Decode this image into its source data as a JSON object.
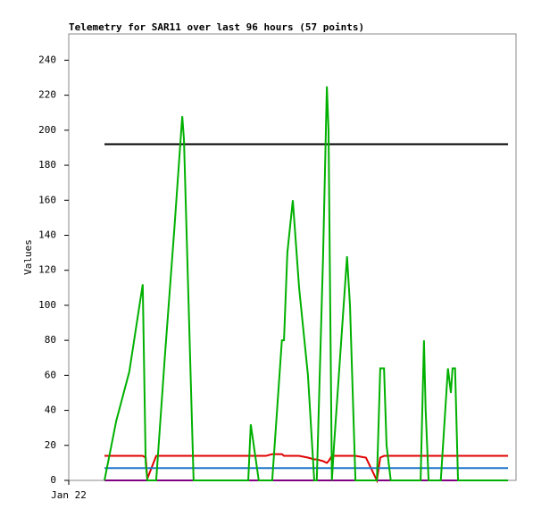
{
  "chart_data": {
    "type": "line",
    "title": "Telemetry for SAR11 over last 96 hours (57 points)",
    "y_label": "Values",
    "x": [
      8.5,
      11.3,
      14.4,
      17.6,
      18.3,
      18.7,
      20.8,
      22.9,
      25.1,
      27.0,
      27.4,
      29.7,
      32.5,
      36.7,
      39.9,
      42.7,
      43.3,
      45.2,
      46.9,
      48.4,
      50.7,
      51.2,
      52.0,
      53.3,
      54.8,
      56.9,
      58.4,
      59.0,
      60.5,
      61.4,
      61.8,
      62.6,
      63.1,
      66.2,
      66.9,
      68.2,
      70.7,
      73.3,
      74.1,
      75.0,
      75.6,
      76.6,
      79.2,
      81.3,
      83.7,
      84.5,
      84.9,
      85.6,
      88.5,
      90.2,
      90.9,
      91.3,
      91.9,
      92.6,
      96.2,
      100.4,
      104.5
    ],
    "xlim": [
      0,
      106.4
    ],
    "xticks": [
      {
        "value": 0,
        "label": "Jan 22"
      }
    ],
    "ylim": [
      0,
      255
    ],
    "yticks": [
      0,
      20,
      40,
      60,
      80,
      100,
      120,
      140,
      160,
      180,
      200,
      220,
      240
    ],
    "series": [
      {
        "color": "#000000",
        "values": [
          192,
          192,
          192,
          192,
          192,
          192,
          192,
          192,
          192,
          192,
          192,
          192,
          192,
          192,
          192,
          192,
          192,
          192,
          192,
          192,
          192,
          192,
          192,
          192,
          192,
          192,
          192,
          192,
          192,
          192,
          192,
          192,
          192,
          192,
          192,
          192,
          192,
          192,
          192,
          192,
          192,
          192,
          192,
          192,
          192,
          192,
          192,
          192,
          192,
          192,
          192,
          192,
          192,
          192,
          192,
          192,
          192
        ]
      },
      {
        "color": "#e00000",
        "values": [
          14,
          14,
          14,
          14,
          13,
          1,
          14,
          14,
          14,
          14,
          14,
          14,
          14,
          14,
          14,
          14,
          14,
          14,
          14,
          15,
          15,
          14,
          14,
          14,
          14,
          13,
          12,
          12,
          11,
          10,
          11,
          14,
          14,
          14,
          14,
          14,
          13,
          0,
          13,
          14,
          14,
          14,
          14,
          14,
          14,
          14,
          14,
          14,
          14,
          14,
          14,
          14,
          14,
          14,
          14,
          14,
          14
        ]
      },
      {
        "color": "#1f77c8",
        "values": [
          7,
          7,
          7,
          7,
          7,
          7,
          7,
          7,
          7,
          7,
          7,
          7,
          7,
          7,
          7,
          7,
          7,
          7,
          7,
          7,
          7,
          7,
          7,
          7,
          7,
          7,
          7,
          7,
          7,
          7,
          7,
          7,
          7,
          7,
          7,
          7,
          7,
          7,
          7,
          7,
          7,
          7,
          7,
          7,
          7,
          7,
          7,
          7,
          7,
          7,
          7,
          7,
          7,
          7,
          7,
          7,
          7
        ]
      },
      {
        "color": "#800080",
        "values": [
          0,
          0,
          0,
          0,
          0,
          0,
          0,
          0,
          0,
          0,
          0,
          0,
          0,
          0,
          0,
          0,
          0,
          0,
          0,
          0,
          0,
          0,
          0,
          0,
          0,
          0,
          0,
          0,
          0,
          0,
          0,
          0,
          0,
          0,
          0,
          0,
          0,
          0,
          0,
          0,
          0,
          0,
          0,
          0,
          0,
          0,
          0,
          0,
          0,
          0,
          0,
          0,
          0,
          0,
          0,
          0,
          0
        ]
      },
      {
        "color": "#00b000",
        "values": [
          0,
          34,
          62,
          112,
          10,
          0,
          0,
          72,
          143,
          208,
          195,
          0,
          0,
          0,
          0,
          0,
          32,
          0,
          0,
          0,
          80,
          80,
          130,
          160,
          110,
          60,
          0,
          0,
          128,
          225,
          200,
          0,
          20,
          128,
          100,
          0,
          0,
          0,
          64,
          64,
          20,
          0,
          0,
          0,
          0,
          80,
          40,
          0,
          0,
          64,
          50,
          64,
          64,
          0,
          0,
          0,
          0
        ]
      }
    ]
  }
}
